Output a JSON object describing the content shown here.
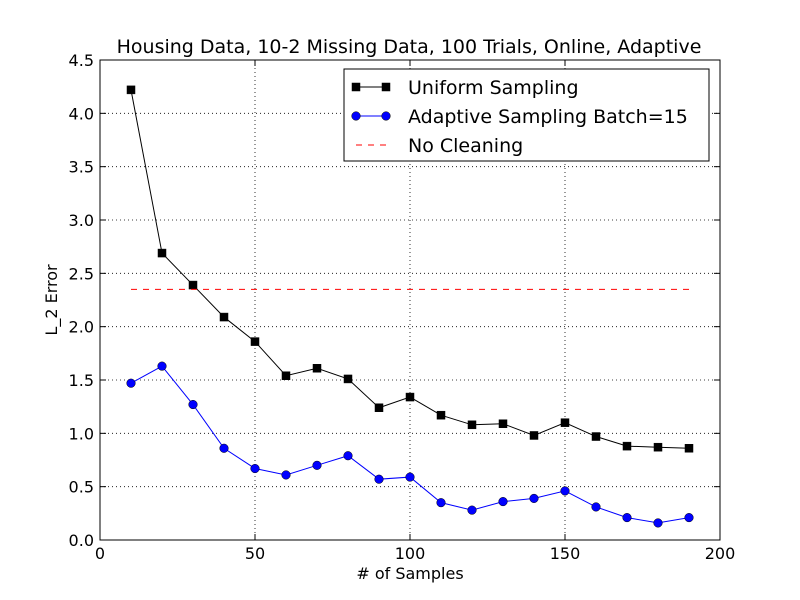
{
  "chart_data": {
    "type": "line",
    "title": "Housing Data, 10-2 Missing Data, 100 Trials, Online, Adaptive",
    "xlabel": "# of Samples",
    "ylabel": "L_2 Error",
    "xlim": [
      0,
      200
    ],
    "ylim": [
      0.0,
      4.5
    ],
    "xticks": [
      "0",
      "50",
      "100",
      "150",
      "200"
    ],
    "yticks": [
      "0.0",
      "0.5",
      "1.0",
      "1.5",
      "2.0",
      "2.5",
      "3.0",
      "3.5",
      "4.0",
      "4.5"
    ],
    "grid": true,
    "legend_position": "top-right",
    "x": [
      10,
      20,
      30,
      40,
      50,
      60,
      70,
      80,
      90,
      100,
      110,
      120,
      130,
      140,
      150,
      160,
      170,
      180,
      190
    ],
    "series": [
      {
        "name": "Uniform Sampling",
        "color": "#000000",
        "marker": "square",
        "line": "solid",
        "values": [
          4.22,
          2.69,
          2.39,
          2.09,
          1.86,
          1.54,
          1.61,
          1.51,
          1.24,
          1.34,
          1.17,
          1.08,
          1.09,
          0.98,
          1.1,
          0.97,
          0.88,
          0.87,
          0.86
        ]
      },
      {
        "name": "Adaptive Sampling Batch=15",
        "color": "#0000ff",
        "marker": "circle",
        "line": "solid",
        "values": [
          1.47,
          1.63,
          1.27,
          0.86,
          0.67,
          0.61,
          0.7,
          0.79,
          0.57,
          0.59,
          0.35,
          0.28,
          0.36,
          0.39,
          0.46,
          0.31,
          0.21,
          0.16,
          0.21
        ]
      },
      {
        "name": "No Cleaning",
        "color": "#ff0000",
        "marker": "none",
        "line": "dashed",
        "x": [
          10,
          190
        ],
        "values": [
          2.35,
          2.35
        ]
      }
    ]
  }
}
